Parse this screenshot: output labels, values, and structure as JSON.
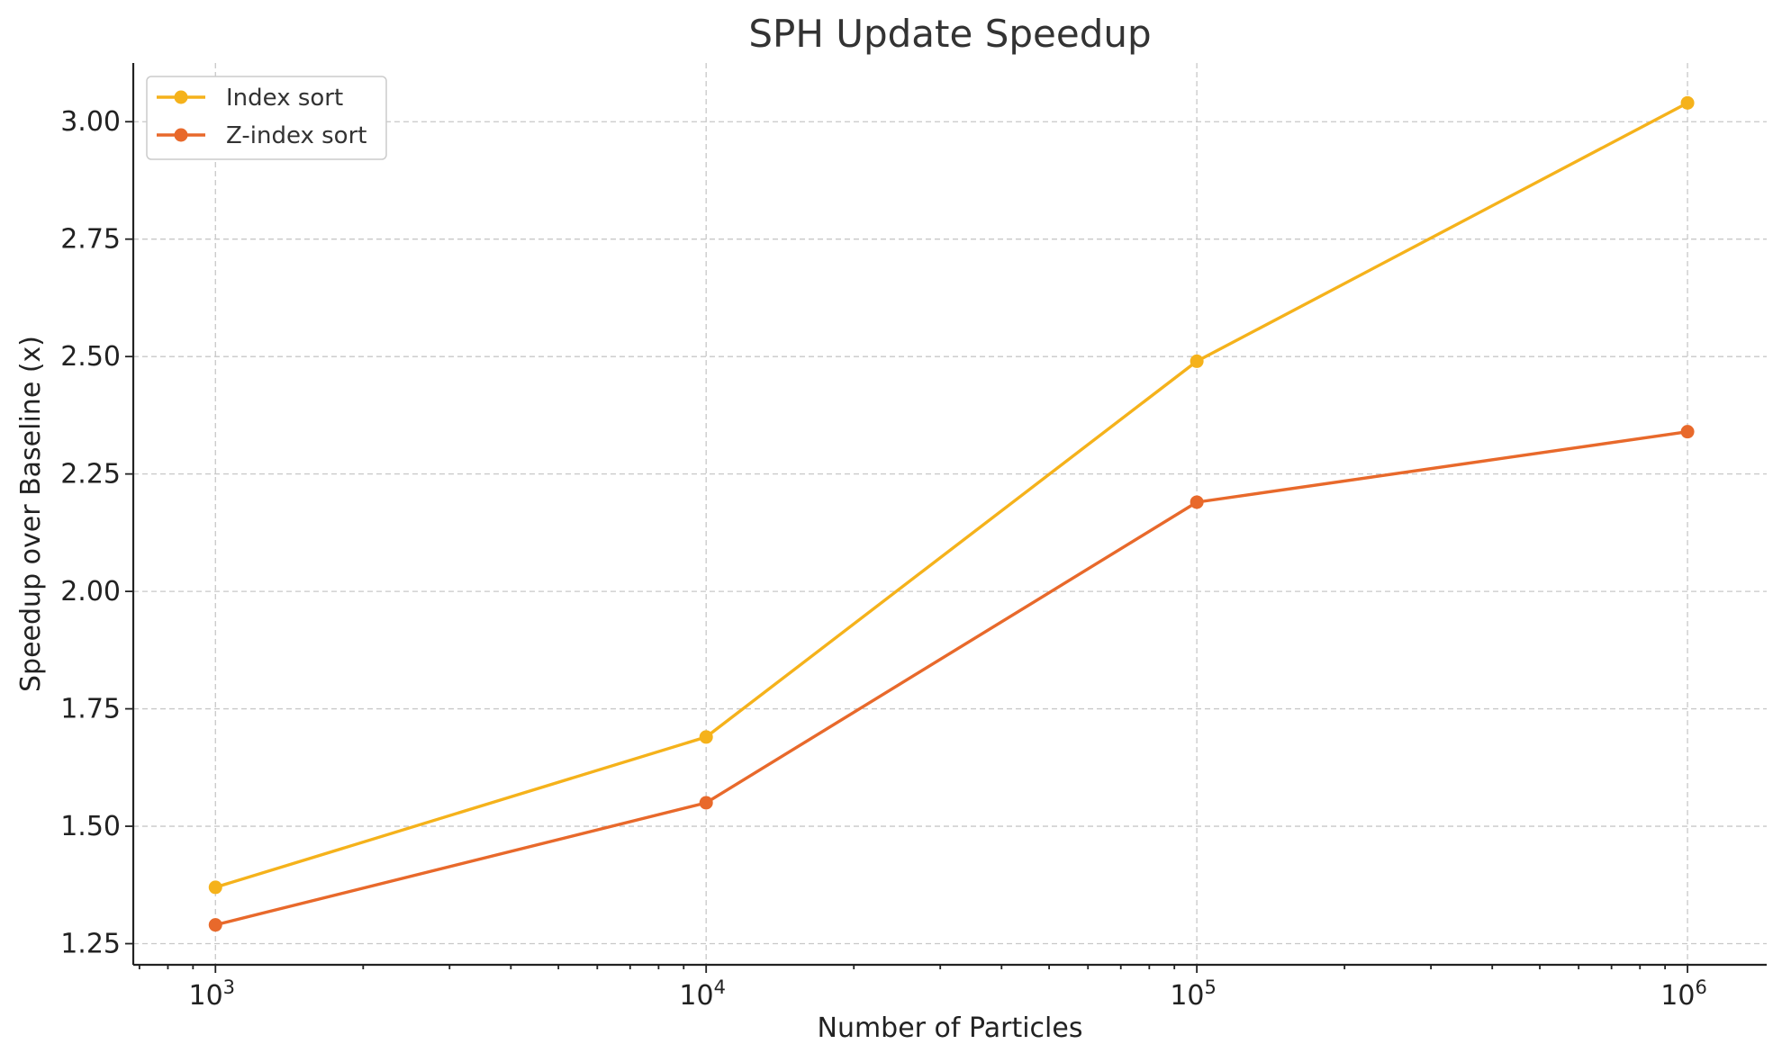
{
  "chart_data": {
    "type": "line",
    "title": "SPH Update Speedup",
    "xlabel": "Number of Particles",
    "ylabel": "Speedup over Baseline (x)",
    "x_scale": "log",
    "x": [
      1000,
      10000,
      100000,
      1000000
    ],
    "x_tick_labels": [
      {
        "base": "10",
        "exp": "3"
      },
      {
        "base": "10",
        "exp": "4"
      },
      {
        "base": "10",
        "exp": "5"
      },
      {
        "base": "10",
        "exp": "6"
      }
    ],
    "y_ticks": [
      "1.25",
      "1.50",
      "1.75",
      "2.00",
      "2.25",
      "2.50",
      "2.75",
      "3.00"
    ],
    "xlim": [
      680,
      1450000
    ],
    "ylim": [
      1.205,
      3.125
    ],
    "grid": true,
    "legend_position": "top-left",
    "series": [
      {
        "name": "Index sort",
        "color": "#F5B21B",
        "values": [
          1.37,
          1.69,
          2.49,
          3.04
        ]
      },
      {
        "name": "Z-index sort",
        "color": "#E8692B",
        "values": [
          1.29,
          1.55,
          2.19,
          2.34
        ]
      }
    ]
  }
}
